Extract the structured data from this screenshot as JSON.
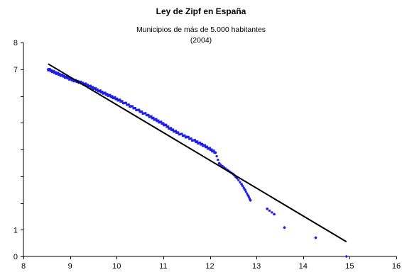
{
  "chart_data": {
    "type": "scatter",
    "title": "Ley de Zipf en España",
    "subtitle_lines": [
      "Municipios de más de 5.000 habitantes",
      "(2004)"
    ],
    "xlabel": "",
    "ylabel": "",
    "xlim": [
      8,
      16
    ],
    "ylim": [
      0,
      8
    ],
    "x_ticks": [
      "8",
      "9",
      "10",
      "11",
      "12",
      "13",
      "14",
      "15",
      "16"
    ],
    "y_ticks": [
      "0",
      "1",
      "7",
      "8"
    ],
    "y_tick_positions": [
      0,
      1,
      7,
      8
    ],
    "grid": false,
    "legend": "none",
    "series": [
      {
        "kind": "points",
        "color": "#1f1fe8",
        "x": [
          8.53,
          8.65,
          8.78,
          8.92,
          9.05,
          9.2,
          9.35,
          9.5,
          9.65,
          9.8,
          9.95,
          10.1,
          10.3,
          10.5,
          10.7,
          10.85,
          11.0,
          11.15,
          11.3,
          11.5,
          11.7,
          11.85,
          12.0,
          12.12,
          12.2,
          12.3,
          12.4,
          12.5,
          12.58,
          12.68,
          12.75,
          12.82,
          12.87,
          13.23,
          13.38,
          13.6,
          14.27,
          14.93
        ],
        "y": [
          7.0,
          6.9,
          6.8,
          6.7,
          6.6,
          6.52,
          6.42,
          6.3,
          6.17,
          6.05,
          5.93,
          5.8,
          5.62,
          5.43,
          5.25,
          5.1,
          4.96,
          4.78,
          4.63,
          4.47,
          4.3,
          4.17,
          4.02,
          3.88,
          3.48,
          3.33,
          3.2,
          3.08,
          2.93,
          2.7,
          2.5,
          2.28,
          2.1,
          1.78,
          1.58,
          1.08,
          0.7,
          0.0
        ]
      },
      {
        "kind": "trend-line",
        "color": "#000000",
        "x": [
          8.53,
          14.93
        ],
        "y": [
          7.2,
          0.55
        ]
      }
    ]
  }
}
